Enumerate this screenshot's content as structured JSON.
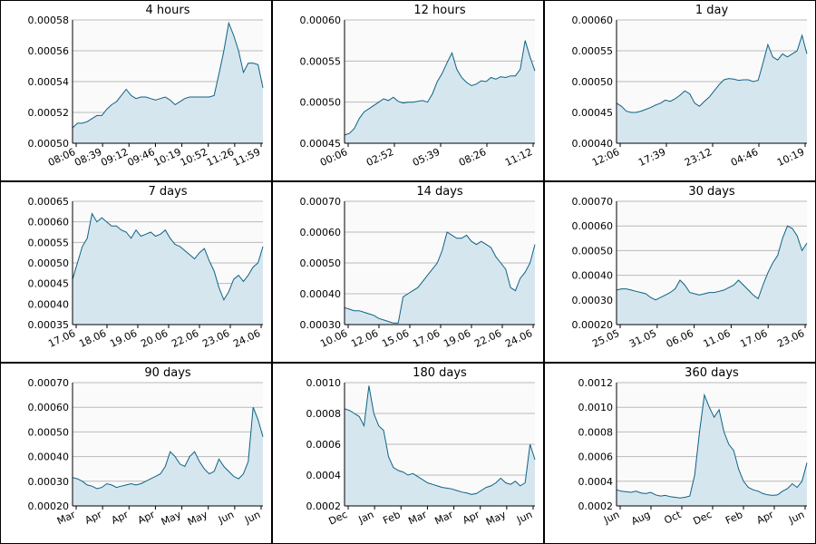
{
  "colors": {
    "line": "#0d6384",
    "fill": "#d6e6ef",
    "grid": "#b9b9b9",
    "plot_bg": "#fafafa",
    "panel_bg": "#ffffff",
    "border": "#000000"
  },
  "chart_data": [
    {
      "type": "area",
      "title": "4 hours",
      "ylim": [
        0.0005,
        0.00058
      ],
      "yticks": [
        "0.00050",
        "0.00052",
        "0.00054",
        "0.00056",
        "0.00058"
      ],
      "xticks": [
        "08:06",
        "08:39",
        "09:12",
        "09:46",
        "10:19",
        "10:52",
        "11:26",
        "11:59"
      ],
      "xtick_rotate": true,
      "series": [
        {
          "values": [
            0.00051,
            0.000513,
            0.000513,
            0.000514,
            0.000516,
            0.000518,
            0.000518,
            0.000522,
            0.000525,
            0.000527,
            0.000531,
            0.000535,
            0.000531,
            0.000529,
            0.00053,
            0.00053,
            0.000529,
            0.000528,
            0.000529,
            0.00053,
            0.000528,
            0.000525,
            0.000527,
            0.000529,
            0.00053,
            0.00053,
            0.00053,
            0.00053,
            0.00053,
            0.000531,
            0.000545,
            0.00056,
            0.000578,
            0.00057,
            0.00056,
            0.000546,
            0.000552,
            0.000552,
            0.000551,
            0.000536
          ]
        }
      ]
    },
    {
      "type": "area",
      "title": "12 hours",
      "ylim": [
        0.00045,
        0.0006
      ],
      "yticks": [
        "0.00045",
        "0.00050",
        "0.00055",
        "0.00060"
      ],
      "xticks": [
        "00:06",
        "02:52",
        "05:39",
        "08:26",
        "11:12"
      ],
      "xtick_rotate": true,
      "series": [
        {
          "values": [
            0.00046,
            0.000462,
            0.000468,
            0.00048,
            0.000488,
            0.000492,
            0.000496,
            0.0005,
            0.000504,
            0.000502,
            0.000506,
            0.000501,
            0.000499,
            0.0005,
            0.0005,
            0.000501,
            0.000502,
            0.0005,
            0.00051,
            0.000525,
            0.000535,
            0.000548,
            0.00056,
            0.00054,
            0.00053,
            0.000524,
            0.00052,
            0.000522,
            0.000526,
            0.000525,
            0.00053,
            0.000528,
            0.000531,
            0.00053,
            0.000532,
            0.000532,
            0.00054,
            0.000575,
            0.000555,
            0.000538
          ]
        }
      ]
    },
    {
      "type": "area",
      "title": "1 day",
      "ylim": [
        0.0004,
        0.0006
      ],
      "yticks": [
        "0.00040",
        "0.00045",
        "0.00050",
        "0.00055",
        "0.00060"
      ],
      "xticks": [
        "12:06",
        "17:39",
        "23:12",
        "04:46",
        "10:19"
      ],
      "xtick_rotate": true,
      "series": [
        {
          "values": [
            0.000465,
            0.00046,
            0.000452,
            0.00045,
            0.00045,
            0.000452,
            0.000455,
            0.000458,
            0.000462,
            0.000465,
            0.00047,
            0.000468,
            0.000472,
            0.000478,
            0.000485,
            0.00048,
            0.000465,
            0.00046,
            0.000468,
            0.000475,
            0.000485,
            0.000495,
            0.000503,
            0.000505,
            0.000504,
            0.000502,
            0.000503,
            0.000503,
            0.0005,
            0.000502,
            0.00053,
            0.00056,
            0.00054,
            0.000535,
            0.000545,
            0.00054,
            0.000545,
            0.00055,
            0.000575,
            0.000545
          ]
        }
      ]
    },
    {
      "type": "area",
      "title": "7 days",
      "ylim": [
        0.00035,
        0.00065
      ],
      "yticks": [
        "0.00035",
        "0.00040",
        "0.00045",
        "0.00050",
        "0.00055",
        "0.00060",
        "0.00065"
      ],
      "xticks": [
        "17.06",
        "18.06",
        "19.06",
        "20.06",
        "22.06",
        "23.06",
        "24.06"
      ],
      "xtick_rotate": true,
      "series": [
        {
          "values": [
            0.00046,
            0.0005,
            0.00054,
            0.00056,
            0.00062,
            0.0006,
            0.00061,
            0.0006,
            0.00059,
            0.00059,
            0.00058,
            0.000575,
            0.00056,
            0.00058,
            0.000565,
            0.00057,
            0.000575,
            0.000565,
            0.00057,
            0.00058,
            0.00056,
            0.000545,
            0.00054,
            0.00053,
            0.00052,
            0.00051,
            0.000525,
            0.000535,
            0.000505,
            0.00048,
            0.00044,
            0.00041,
            0.00043,
            0.00046,
            0.00047,
            0.000455,
            0.00047,
            0.00049,
            0.0005,
            0.00054
          ]
        }
      ]
    },
    {
      "type": "area",
      "title": "14 days",
      "ylim": [
        0.0003,
        0.0007
      ],
      "yticks": [
        "0.00030",
        "0.00040",
        "0.00050",
        "0.00060",
        "0.00070"
      ],
      "xticks": [
        "10.06",
        "12.06",
        "15.06",
        "17.06",
        "19.06",
        "22.06",
        "24.06"
      ],
      "xtick_rotate": true,
      "series": [
        {
          "values": [
            0.000355,
            0.00035,
            0.000345,
            0.000345,
            0.00034,
            0.000335,
            0.00033,
            0.00032,
            0.000315,
            0.00031,
            0.000305,
            0.000305,
            0.00039,
            0.0004,
            0.00041,
            0.00042,
            0.00044,
            0.00046,
            0.00048,
            0.0005,
            0.00054,
            0.0006,
            0.00059,
            0.00058,
            0.00058,
            0.00059,
            0.00057,
            0.00056,
            0.00057,
            0.00056,
            0.00055,
            0.00052,
            0.0005,
            0.00048,
            0.00042,
            0.00041,
            0.00045,
            0.00047,
            0.0005,
            0.00056
          ]
        }
      ]
    },
    {
      "type": "area",
      "title": "30 days",
      "ylim": [
        0.0002,
        0.0007
      ],
      "yticks": [
        "0.00020",
        "0.00030",
        "0.00040",
        "0.00050",
        "0.00060",
        "0.00070"
      ],
      "xticks": [
        "25.05",
        "31.05",
        "06.06",
        "11.06",
        "17.06",
        "23.06"
      ],
      "xtick_rotate": true,
      "series": [
        {
          "values": [
            0.00034,
            0.000345,
            0.000345,
            0.00034,
            0.000335,
            0.00033,
            0.000325,
            0.00031,
            0.0003,
            0.00031,
            0.00032,
            0.00033,
            0.000345,
            0.00038,
            0.00036,
            0.00033,
            0.000325,
            0.00032,
            0.000325,
            0.00033,
            0.00033,
            0.000335,
            0.00034,
            0.00035,
            0.00036,
            0.00038,
            0.00036,
            0.00034,
            0.00032,
            0.000305,
            0.00036,
            0.00041,
            0.00045,
            0.00048,
            0.00055,
            0.0006,
            0.00059,
            0.00056,
            0.0005,
            0.00053
          ]
        }
      ]
    },
    {
      "type": "area",
      "title": "90 days",
      "ylim": [
        0.0002,
        0.0007
      ],
      "yticks": [
        "0.00020",
        "0.00030",
        "0.00040",
        "0.00050",
        "0.00060",
        "0.00070"
      ],
      "xticks": [
        "Mar",
        "Apr",
        "Apr",
        "Apr",
        "May",
        "May",
        "Jun",
        "Jun"
      ],
      "xtick_rotate": true,
      "series": [
        {
          "values": [
            0.000315,
            0.00031,
            0.0003,
            0.000285,
            0.00028,
            0.00027,
            0.000275,
            0.00029,
            0.000285,
            0.000275,
            0.00028,
            0.000285,
            0.00029,
            0.000285,
            0.00029,
            0.0003,
            0.00031,
            0.00032,
            0.00033,
            0.00036,
            0.00042,
            0.0004,
            0.00037,
            0.00036,
            0.0004,
            0.00042,
            0.00038,
            0.00035,
            0.00033,
            0.00034,
            0.00039,
            0.00036,
            0.00034,
            0.00032,
            0.00031,
            0.00033,
            0.00038,
            0.0006,
            0.00055,
            0.00048
          ]
        }
      ]
    },
    {
      "type": "area",
      "title": "180 days",
      "ylim": [
        0.0002,
        0.001
      ],
      "yticks": [
        "0.0002",
        "0.0004",
        "0.0006",
        "0.0008",
        "0.0010"
      ],
      "xticks": [
        "Dec",
        "Jan",
        "Feb",
        "Mar",
        "Mar",
        "Apr",
        "May",
        "Jun"
      ],
      "xtick_rotate": true,
      "series": [
        {
          "values": [
            0.00083,
            0.00082,
            0.0008,
            0.00078,
            0.00072,
            0.00098,
            0.0008,
            0.00072,
            0.00069,
            0.00052,
            0.00045,
            0.00043,
            0.00042,
            0.0004,
            0.00041,
            0.00039,
            0.00037,
            0.00035,
            0.00034,
            0.00033,
            0.00032,
            0.000315,
            0.00031,
            0.0003,
            0.00029,
            0.000285,
            0.000275,
            0.00028,
            0.0003,
            0.00032,
            0.00033,
            0.00035,
            0.00038,
            0.00035,
            0.00034,
            0.00036,
            0.00033,
            0.00035,
            0.0006,
            0.0005
          ]
        }
      ]
    },
    {
      "type": "area",
      "title": "360 days",
      "ylim": [
        0.0002,
        0.0012
      ],
      "yticks": [
        "0.0002",
        "0.0004",
        "0.0006",
        "0.0008",
        "0.0010",
        "0.0012"
      ],
      "xticks": [
        "Jun",
        "Aug",
        "Oct",
        "Dec",
        "Feb",
        "Apr",
        "Jun"
      ],
      "xtick_rotate": true,
      "series": [
        {
          "values": [
            0.00033,
            0.00032,
            0.000315,
            0.00031,
            0.00032,
            0.000305,
            0.0003,
            0.00031,
            0.00029,
            0.00028,
            0.000285,
            0.000275,
            0.00027,
            0.000265,
            0.00027,
            0.00028,
            0.00045,
            0.0008,
            0.0011,
            0.001,
            0.00092,
            0.00098,
            0.0008,
            0.0007,
            0.00065,
            0.0005,
            0.0004,
            0.00035,
            0.00033,
            0.00032,
            0.0003,
            0.00029,
            0.000285,
            0.00029,
            0.00032,
            0.00034,
            0.00038,
            0.00035,
            0.0004,
            0.00055
          ]
        }
      ]
    }
  ]
}
